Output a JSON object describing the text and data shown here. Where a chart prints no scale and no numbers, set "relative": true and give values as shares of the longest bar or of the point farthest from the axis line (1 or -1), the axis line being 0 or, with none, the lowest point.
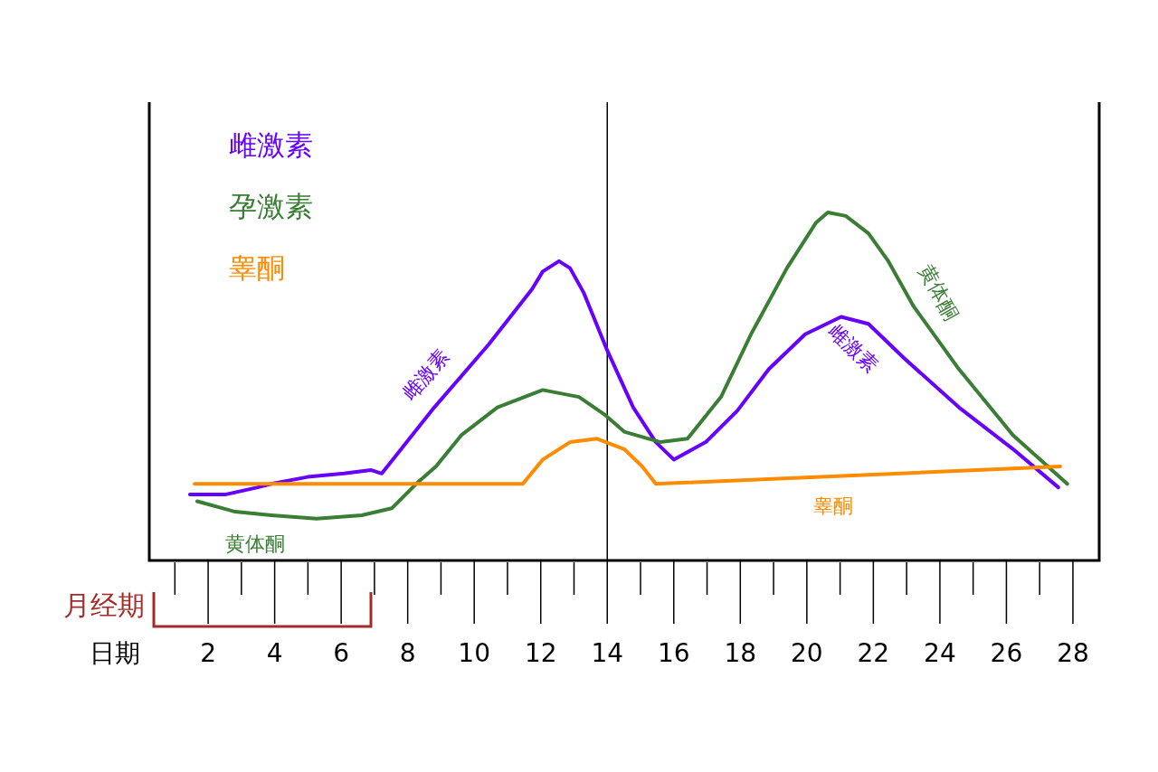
{
  "chart_data": {
    "type": "line",
    "relative": true,
    "xlabel": "日期",
    "legend": "top left",
    "marker": "none",
    "line_style": "solid",
    "xlim": [
      0.23,
      28.79
    ],
    "xticks": [
      2,
      4,
      6,
      8,
      10,
      12,
      14,
      16,
      18,
      20,
      22,
      24,
      26,
      28
    ],
    "series": [
      {
        "name": "雌激素",
        "color": "#6600ff",
        "x": [
          1.45,
          2.54,
          3.49,
          3.9,
          4.99,
          6.08,
          6.89,
          7.22,
          8.8,
          10.43,
          11.74,
          12.06,
          12.55,
          12.88,
          13.29,
          13.97,
          14.78,
          15.46,
          16.0,
          16.96,
          17.91,
          18.86,
          19.95,
          21.03,
          21.85,
          22.94,
          24.57,
          26.2,
          27.56
        ],
        "values": [
          0.19,
          0.19,
          0.21,
          0.22,
          0.24,
          0.25,
          0.26,
          0.25,
          0.44,
          0.62,
          0.78,
          0.83,
          0.86,
          0.84,
          0.77,
          0.61,
          0.44,
          0.34,
          0.29,
          0.34,
          0.43,
          0.55,
          0.65,
          0.7,
          0.68,
          0.58,
          0.44,
          0.32,
          0.21
        ]
      },
      {
        "name": "孕激素",
        "color": "#3a7d34",
        "x": [
          1.67,
          2.81,
          3.9,
          5.26,
          6.62,
          7.52,
          8.25,
          8.85,
          9.61,
          10.7,
          12.06,
          13.15,
          13.91,
          14.51,
          15.6,
          16.41,
          17.42,
          18.32,
          19.4,
          20.27,
          20.63,
          21.17,
          21.85,
          22.45,
          23.21,
          24.57,
          26.2,
          27.83
        ],
        "values": [
          0.17,
          0.14,
          0.13,
          0.12,
          0.13,
          0.15,
          0.22,
          0.27,
          0.36,
          0.44,
          0.49,
          0.47,
          0.42,
          0.37,
          0.34,
          0.35,
          0.47,
          0.65,
          0.84,
          0.97,
          1.0,
          0.99,
          0.94,
          0.86,
          0.73,
          0.55,
          0.36,
          0.22
        ]
      },
      {
        "name": "睾酮",
        "color": "#ff8c00",
        "x": [
          1.59,
          11.46,
          12.06,
          12.88,
          13.69,
          14.51,
          15.05,
          15.46,
          27.62
        ],
        "values": [
          0.22,
          0.22,
          0.29,
          0.34,
          0.35,
          0.32,
          0.27,
          0.22,
          0.27
        ]
      }
    ],
    "ref_lines": [
      {
        "axis": "x",
        "value": 14,
        "color": "#000000"
      }
    ],
    "annotations": [
      {
        "text": "雌激素",
        "x": 9.2,
        "y": 0.48
      },
      {
        "text": "黄体酮",
        "x": 23.2,
        "y": 0.73
      },
      {
        "text": "雌激素",
        "x": 22.0,
        "y": 0.67
      },
      {
        "text": "黄体酮",
        "x": 3.4,
        "y": 0.13
      },
      {
        "text": "睾酮",
        "x": 20.8,
        "y": 0.24
      },
      "月经期"
    ]
  }
}
